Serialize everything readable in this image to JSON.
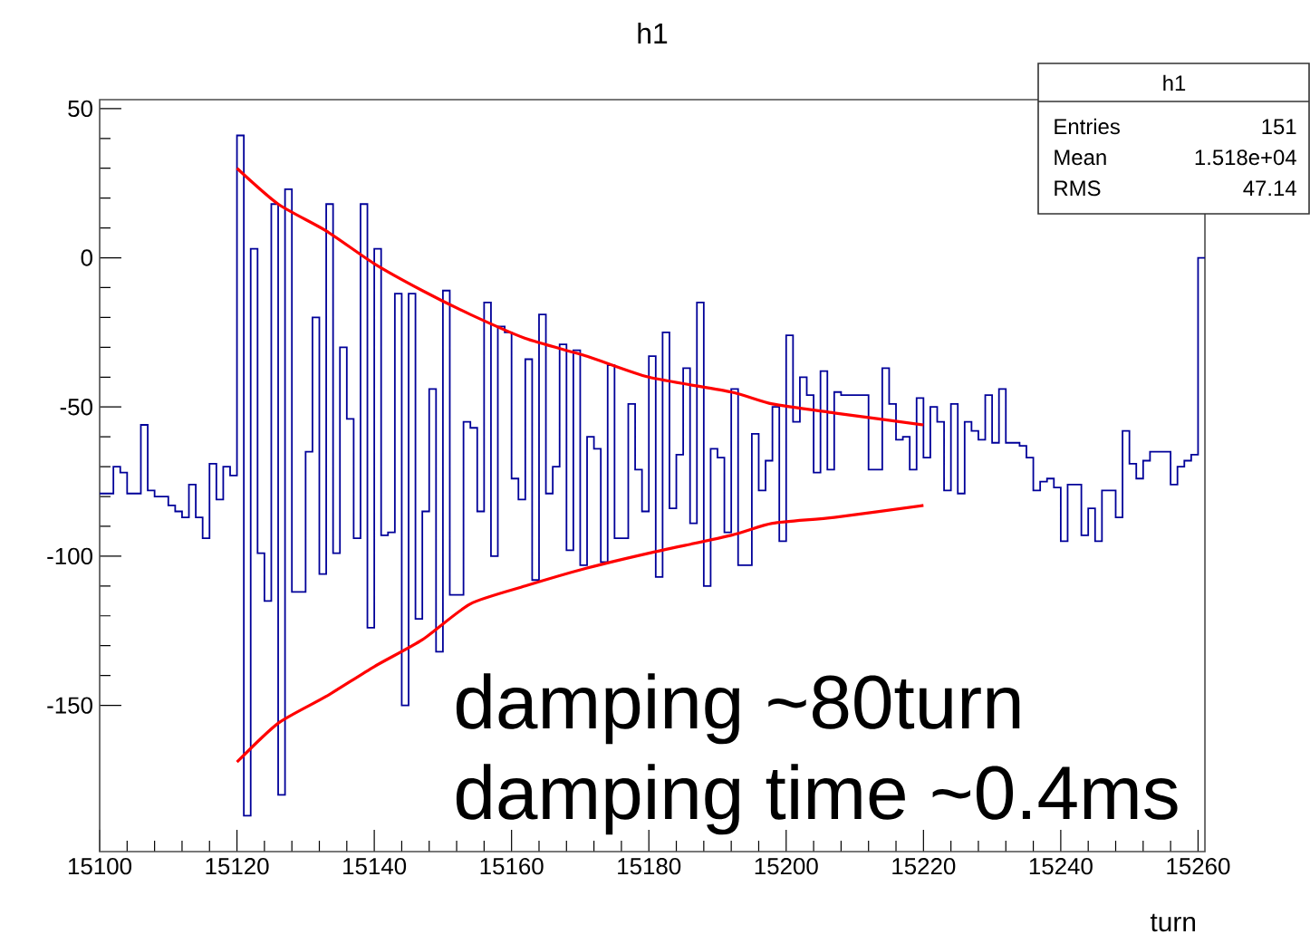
{
  "chart_data": {
    "type": "histogram",
    "title": "h1",
    "xlabel": "turn",
    "xlim": [
      15100,
      15261
    ],
    "ylim": [
      -199,
      53
    ],
    "xticks": [
      15100,
      15120,
      15140,
      15160,
      15180,
      15200,
      15220,
      15240,
      15260
    ],
    "yticks": [
      -150,
      -100,
      -50,
      0,
      50
    ],
    "annotations": [
      "h1",
      "Entries",
      "151",
      "Mean",
      "1.518e+04",
      "RMS",
      "47.14",
      "damping  ~80turn",
      "damping time ~0.4ms"
    ],
    "series": [
      {
        "color": "#000099",
        "bins": [
          15100,
          15101,
          15102,
          15103,
          15104,
          15105,
          15106,
          15107,
          15108,
          15109,
          15110,
          15111,
          15112,
          15113,
          15114,
          15115,
          15116,
          15117,
          15118,
          15119,
          15120,
          15121,
          15122,
          15123,
          15124,
          15125,
          15126,
          15127,
          15128,
          15130,
          15131,
          15132,
          15133,
          15134,
          15135,
          15136,
          15137,
          15138,
          15139,
          15140,
          15141,
          15142,
          15143,
          15144,
          15145,
          15146,
          15147,
          15148,
          15149,
          15150,
          15151,
          15153,
          15154,
          15155,
          15156,
          15157,
          15158,
          15159,
          15160,
          15161,
          15162,
          15163,
          15164,
          15165,
          15166,
          15167,
          15168,
          15169,
          15170,
          15171,
          15172,
          15173,
          15174,
          15175,
          15177,
          15178,
          15179,
          15180,
          15181,
          15182,
          15183,
          15184,
          15185,
          15186,
          15187,
          15188,
          15189,
          15190,
          15191,
          15192,
          15193,
          15195,
          15196,
          15197,
          15198,
          15199,
          15200,
          15201,
          15202,
          15203,
          15204,
          15205,
          15206,
          15207,
          15208,
          15210,
          15211,
          15212,
          15214,
          15215,
          15216,
          15217,
          15218,
          15219,
          15220,
          15221,
          15222,
          15223,
          15224,
          15225,
          15226,
          15227,
          15228,
          15229,
          15230,
          15231,
          15232,
          15233,
          15234,
          15235,
          15236,
          15237,
          15238,
          15239,
          15240,
          15241,
          15242,
          15243,
          15244,
          15245,
          15246,
          15248,
          15249,
          15250,
          15251,
          15252,
          15253,
          15255,
          15256,
          15257,
          15258,
          15259,
          15260,
          15261
        ],
        "values": [
          -79,
          -79,
          -70,
          -72,
          -79,
          -79,
          -56,
          -78,
          -80,
          -80,
          -83,
          -85,
          -87,
          -76,
          -87,
          -94,
          -69,
          -81,
          -70,
          -73,
          41,
          -187,
          3,
          -99,
          -115,
          18,
          -180,
          23,
          -112,
          -65,
          -20,
          -106,
          18,
          -99,
          -30,
          -54,
          -94,
          18,
          -124,
          3,
          -93,
          -92,
          -12,
          -150,
          -12,
          -121,
          -85,
          -44,
          -132,
          -11,
          -113,
          -55,
          -57,
          -85,
          -15,
          -100,
          -23,
          -25,
          -74,
          -81,
          -34,
          -108,
          -19,
          -79,
          -70,
          -29,
          -98,
          -31,
          -103,
          -60,
          -64,
          -102,
          -36,
          -94,
          -49,
          -71,
          -85,
          -33,
          -107,
          -25,
          -84,
          -66,
          -37,
          -89,
          -15,
          -110,
          -64,
          -67,
          -92,
          -44,
          -103,
          -59,
          -78,
          -68,
          -50,
          -95,
          -26,
          -55,
          -40,
          -46,
          -72,
          -38,
          -71,
          -45,
          -46,
          -46,
          -46,
          -71,
          -37,
          -49,
          -61,
          -60,
          -71,
          -47,
          -67,
          -50,
          -55,
          -78,
          -49,
          -79,
          -55,
          -58,
          -61,
          -46,
          -62,
          -44,
          -62,
          -62,
          -63,
          -67,
          -78,
          -75,
          -74,
          -77,
          -95,
          -76,
          -76,
          -93,
          -84,
          -95,
          -78,
          -87,
          -58,
          -69,
          -74,
          -68,
          -65,
          -65,
          -76,
          -70,
          -68,
          -66,
          0
        ]
      },
      {
        "type": "line",
        "color": "#ff0000",
        "x": [
          15120,
          15126,
          15133,
          15140,
          15147,
          15154,
          15162,
          15171,
          15180,
          15192,
          15198,
          15207,
          15220
        ],
        "values": [
          30,
          18,
          9,
          -2,
          -11,
          -19,
          -27,
          -33,
          -40,
          -45,
          -49,
          -52,
          -56
        ]
      },
      {
        "type": "line",
        "color": "#ff0000",
        "x": [
          15120,
          15126,
          15133,
          15140,
          15147,
          15154,
          15162,
          15171,
          15180,
          15192,
          15198,
          15207,
          15220
        ],
        "values": [
          -169,
          -156,
          -147,
          -137,
          -128,
          -116,
          -110,
          -104,
          -99,
          -93,
          -89,
          -87,
          -83
        ]
      }
    ]
  }
}
